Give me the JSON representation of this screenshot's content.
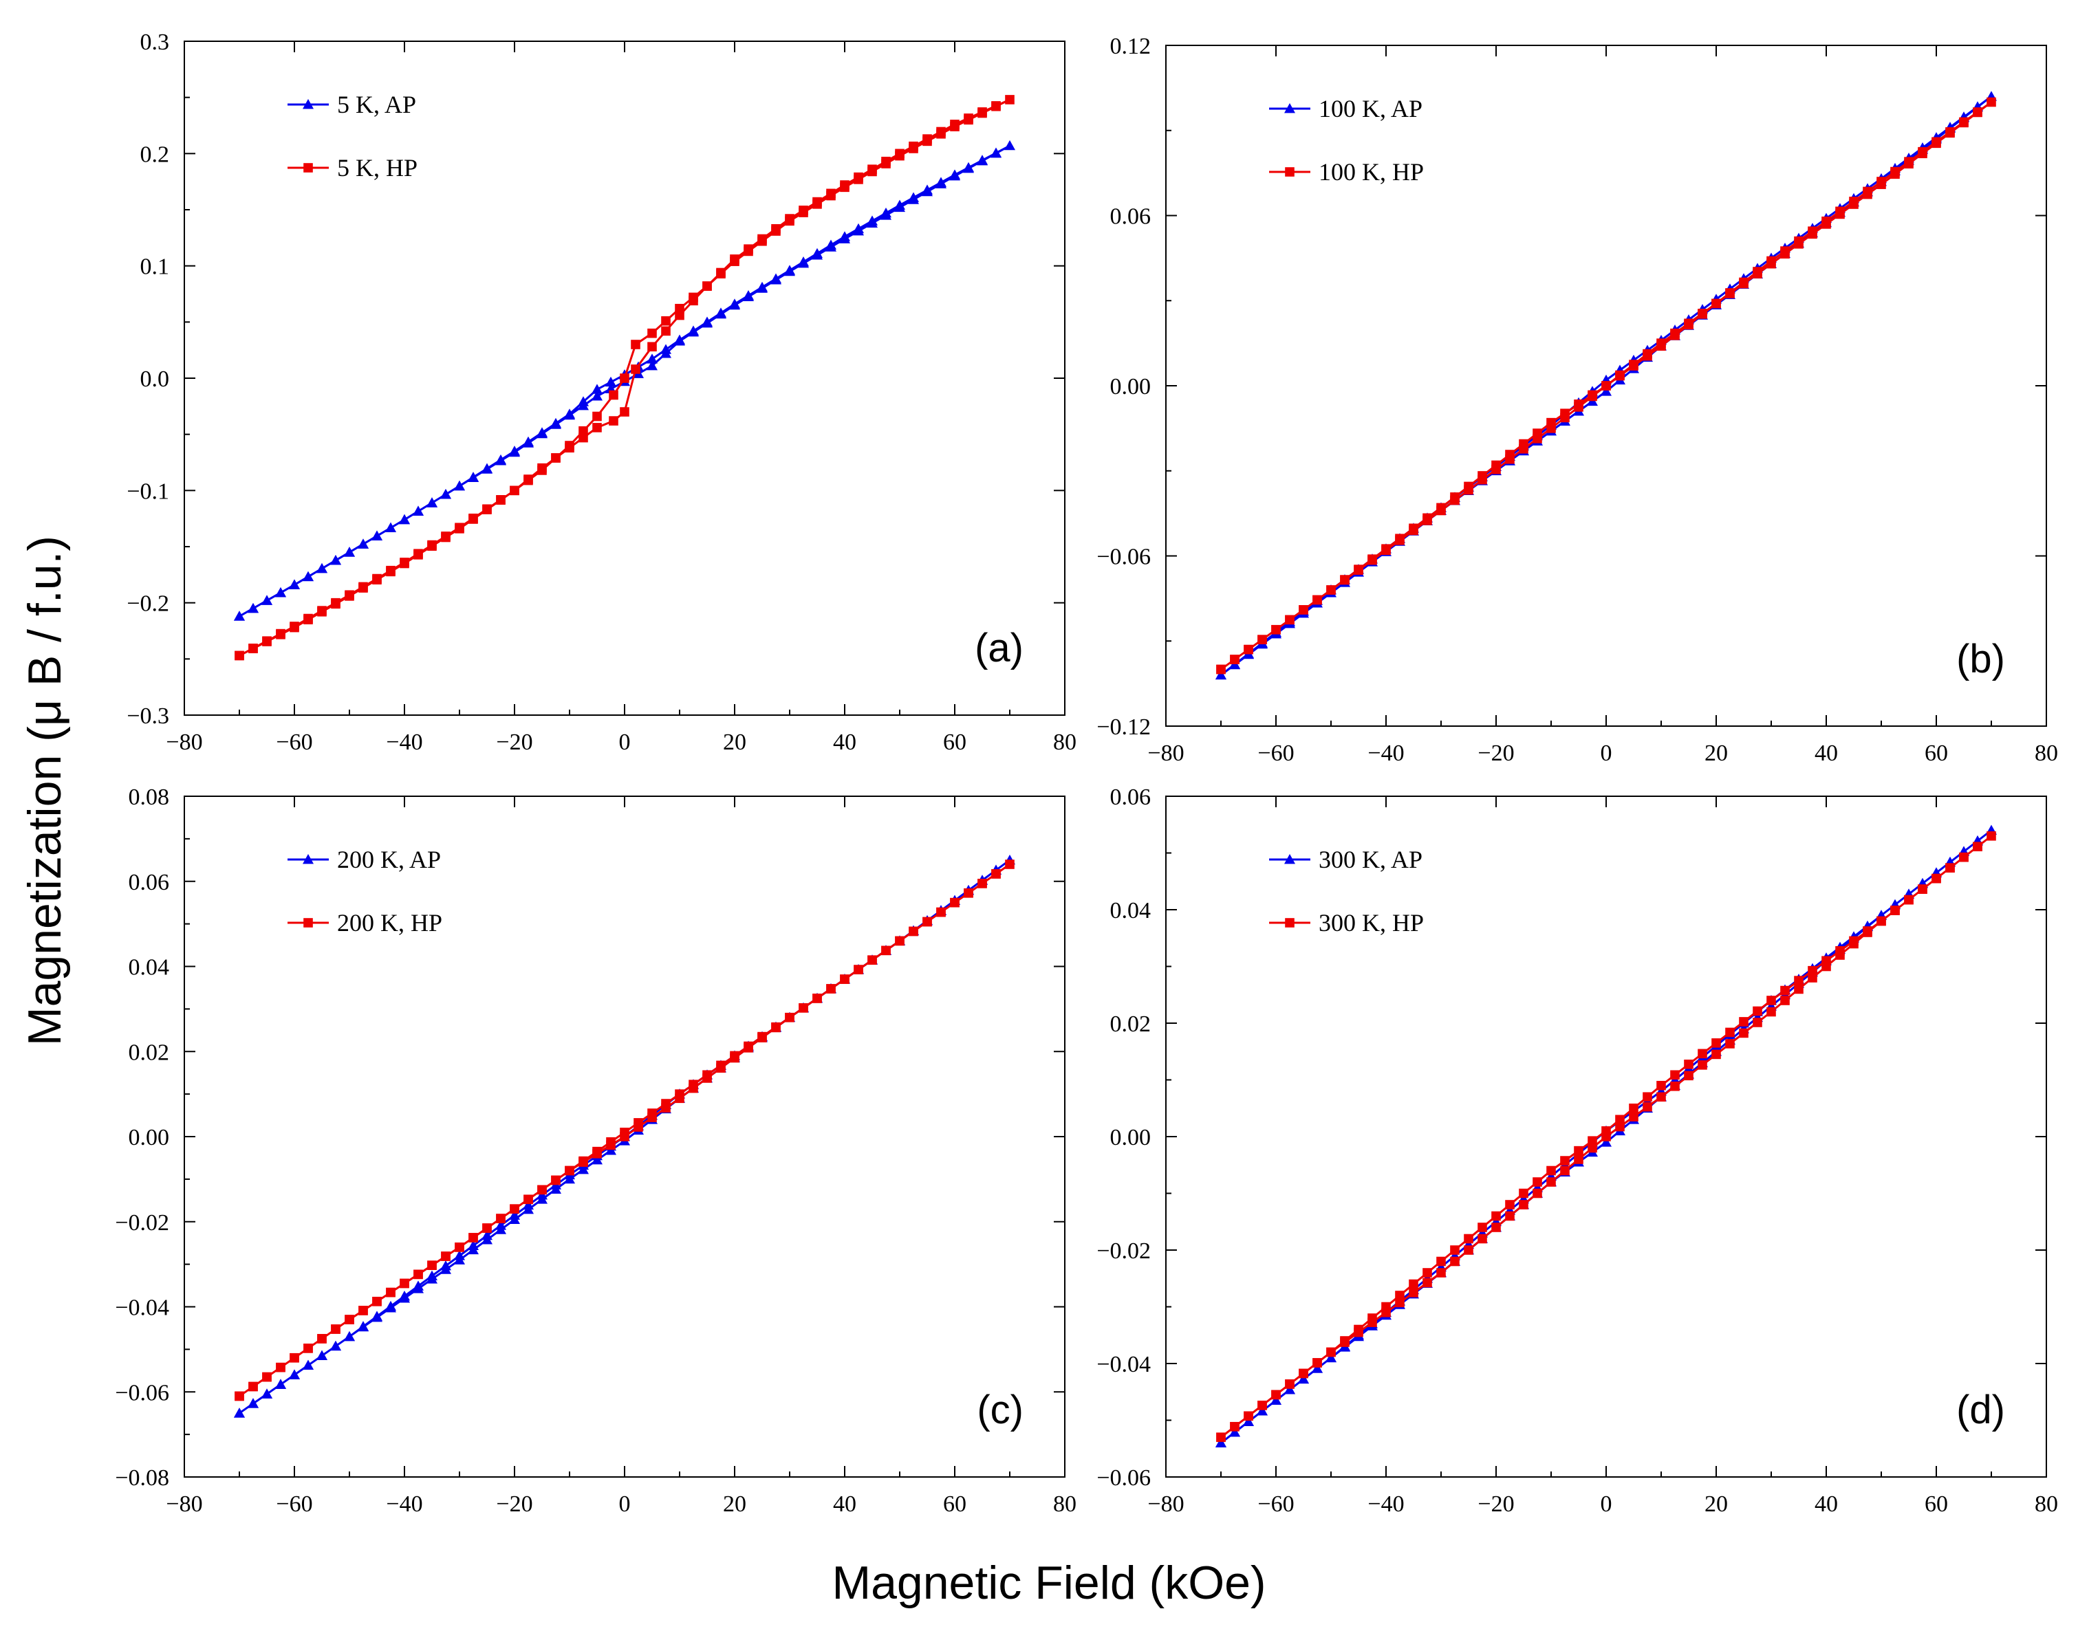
{
  "figure": {
    "xlabel": "Magnetic Field (kOe)",
    "ylabel": "Magnetization (μ B / f.u.)"
  },
  "chart_data": [
    {
      "type": "line",
      "panel": "(a)",
      "xlim": [
        -80,
        80
      ],
      "ylim": [
        -0.3,
        0.3
      ],
      "xticks": [
        -80,
        -60,
        -40,
        -20,
        0,
        20,
        40,
        60,
        80
      ],
      "xtick_labels": [
        "−80",
        "−60",
        "−40",
        "−20",
        "0",
        "20",
        "40",
        "60",
        "80"
      ],
      "yticks": [
        -0.3,
        -0.2,
        -0.1,
        0.0,
        0.1,
        0.2,
        0.3
      ],
      "ytick_labels": [
        "−0.3",
        "−0.2",
        "−0.1",
        "0.0",
        "0.1",
        "0.2",
        "0.3"
      ],
      "legend_position": "top-left",
      "series": [
        {
          "name": "5 K, AP",
          "color": "#0000ee",
          "marker": "triangle",
          "x": [
            -70,
            -60,
            -50,
            -40,
            -30,
            -20,
            -10,
            -5,
            0,
            5,
            10,
            20,
            30,
            40,
            50,
            60,
            70,
            60,
            50,
            40,
            30,
            20,
            10,
            5,
            0,
            -5,
            -10,
            -20,
            -30,
            -40,
            -50,
            -60,
            -70
          ],
          "y": [
            -0.212,
            -0.184,
            -0.155,
            -0.126,
            -0.096,
            -0.066,
            -0.033,
            -0.016,
            -0.003,
            0.011,
            0.033,
            0.065,
            0.095,
            0.124,
            0.152,
            0.18,
            0.207,
            0.181,
            0.154,
            0.126,
            0.096,
            0.066,
            0.034,
            0.017,
            0.003,
            -0.01,
            -0.032,
            -0.065,
            -0.096,
            -0.126,
            -0.155,
            -0.184,
            -0.212
          ]
        },
        {
          "name": "5 K, HP",
          "color": "#ee0000",
          "marker": "square",
          "x": [
            -70,
            -60,
            -50,
            -40,
            -30,
            -20,
            -15,
            -10,
            -5,
            -2,
            0,
            2,
            5,
            10,
            15,
            20,
            30,
            40,
            50,
            60,
            70,
            60,
            50,
            40,
            30,
            20,
            15,
            10,
            5,
            2,
            0,
            -2,
            -5,
            -10,
            -15,
            -20,
            -30,
            -40,
            -50,
            -60,
            -70
          ],
          "y": [
            -0.247,
            -0.222,
            -0.194,
            -0.165,
            -0.134,
            -0.1,
            -0.082,
            -0.06,
            -0.034,
            -0.015,
            0.0,
            0.03,
            0.04,
            0.062,
            0.082,
            0.104,
            0.14,
            0.17,
            0.198,
            0.224,
            0.248,
            0.226,
            0.2,
            0.172,
            0.142,
            0.106,
            0.082,
            0.056,
            0.028,
            0.008,
            -0.03,
            -0.038,
            -0.044,
            -0.062,
            -0.08,
            -0.1,
            -0.133,
            -0.164,
            -0.193,
            -0.221,
            -0.247
          ]
        }
      ]
    },
    {
      "type": "line",
      "panel": "(b)",
      "xlim": [
        -80,
        80
      ],
      "ylim": [
        -0.12,
        0.12
      ],
      "xticks": [
        -80,
        -60,
        -40,
        -20,
        0,
        20,
        40,
        60,
        80
      ],
      "xtick_labels": [
        "−80",
        "−60",
        "−40",
        "−20",
        "0",
        "20",
        "40",
        "60",
        "80"
      ],
      "yticks": [
        -0.12,
        -0.06,
        0.0,
        0.06,
        0.12
      ],
      "ytick_labels": [
        "−0.12",
        "−0.06",
        "0.00",
        "0.06",
        "0.12"
      ],
      "legend_position": "top-left",
      "series": [
        {
          "name": "100 K, AP",
          "color": "#0000ee",
          "marker": "triangle",
          "x": [
            -70,
            -50,
            -30,
            -10,
            0,
            10,
            30,
            50,
            70,
            50,
            30,
            10,
            0,
            -10,
            -30,
            -50,
            -70
          ],
          "y": [
            -0.102,
            -0.073,
            -0.044,
            -0.016,
            -0.002,
            0.014,
            0.043,
            0.072,
            0.102,
            0.073,
            0.045,
            0.016,
            0.002,
            -0.014,
            -0.043,
            -0.072,
            -0.102
          ]
        },
        {
          "name": "100 K, HP",
          "color": "#ee0000",
          "marker": "square",
          "x": [
            -70,
            -50,
            -30,
            -10,
            0,
            10,
            30,
            50,
            70,
            50,
            30,
            10,
            0,
            -10,
            -30,
            -50,
            -70
          ],
          "y": [
            -0.1,
            -0.072,
            -0.043,
            -0.013,
            0.0,
            0.015,
            0.043,
            0.071,
            0.1,
            0.072,
            0.044,
            0.014,
            0.0,
            -0.015,
            -0.044,
            -0.072,
            -0.1
          ]
        }
      ]
    },
    {
      "type": "line",
      "panel": "(c)",
      "xlim": [
        -80,
        80
      ],
      "ylim": [
        -0.08,
        0.08
      ],
      "xticks": [
        -80,
        -60,
        -40,
        -20,
        0,
        20,
        40,
        60,
        80
      ],
      "xtick_labels": [
        "−80",
        "−60",
        "−40",
        "−20",
        "0",
        "20",
        "40",
        "60",
        "80"
      ],
      "yticks": [
        -0.08,
        -0.06,
        -0.04,
        -0.02,
        0.0,
        0.02,
        0.04,
        0.06,
        0.08
      ],
      "ytick_labels": [
        "−0.08",
        "−0.06",
        "−0.04",
        "−0.02",
        "0.00",
        "0.02",
        "0.04",
        "0.06",
        "0.08"
      ],
      "legend_position": "top-left",
      "series": [
        {
          "name": "200 K, AP",
          "color": "#0000ee",
          "marker": "triangle",
          "x": [
            -70,
            -50,
            -30,
            -10,
            0,
            10,
            30,
            50,
            70,
            50,
            30,
            10,
            0,
            -10,
            -30,
            -50,
            -70
          ],
          "y": [
            -0.065,
            -0.047,
            -0.029,
            -0.01,
            -0.001,
            0.009,
            0.028,
            0.046,
            0.065,
            0.046,
            0.028,
            0.01,
            0.0,
            -0.009,
            -0.028,
            -0.047,
            -0.065
          ]
        },
        {
          "name": "200 K, HP",
          "color": "#ee0000",
          "marker": "square",
          "x": [
            -70,
            -50,
            -30,
            -10,
            0,
            10,
            30,
            50,
            70,
            50,
            30,
            10,
            0,
            -10,
            -30,
            -50,
            -70
          ],
          "y": [
            -0.061,
            -0.043,
            -0.026,
            -0.008,
            0.001,
            0.01,
            0.028,
            0.046,
            0.064,
            0.046,
            0.028,
            0.009,
            0.0,
            -0.008,
            -0.026,
            -0.043,
            -0.061
          ]
        }
      ]
    },
    {
      "type": "line",
      "panel": "(d)",
      "xlim": [
        -80,
        80
      ],
      "ylim": [
        -0.06,
        0.06
      ],
      "xticks": [
        -80,
        -60,
        -40,
        -20,
        0,
        20,
        40,
        60,
        80
      ],
      "xtick_labels": [
        "−80",
        "−60",
        "−40",
        "−20",
        "0",
        "20",
        "40",
        "60",
        "80"
      ],
      "yticks": [
        -0.06,
        -0.04,
        -0.02,
        0.0,
        0.02,
        0.04,
        0.06
      ],
      "ytick_labels": [
        "−0.06",
        "−0.04",
        "−0.02",
        "0.00",
        "0.02",
        "0.04",
        "0.06"
      ],
      "legend_position": "top-left",
      "series": [
        {
          "name": "300 K, AP",
          "color": "#0000ee",
          "marker": "triangle",
          "x": [
            -70,
            -50,
            -30,
            -10,
            0,
            10,
            30,
            50,
            70,
            50,
            30,
            10,
            0,
            -10,
            -30,
            -50,
            -70
          ],
          "y": [
            -0.054,
            -0.039,
            -0.024,
            -0.008,
            -0.001,
            0.007,
            0.023,
            0.039,
            0.054,
            0.039,
            0.024,
            0.008,
            0.001,
            -0.007,
            -0.023,
            -0.039,
            -0.054
          ]
        },
        {
          "name": "300 K, HP",
          "color": "#ee0000",
          "marker": "square",
          "x": [
            -70,
            -50,
            -30,
            -10,
            0,
            10,
            30,
            50,
            70,
            50,
            30,
            10,
            0,
            -10,
            -30,
            -50,
            -70
          ],
          "y": [
            -0.053,
            -0.038,
            -0.022,
            -0.006,
            0.001,
            0.009,
            0.024,
            0.038,
            0.053,
            0.038,
            0.022,
            0.007,
            0.0,
            -0.008,
            -0.024,
            -0.038,
            -0.053
          ]
        }
      ]
    }
  ]
}
